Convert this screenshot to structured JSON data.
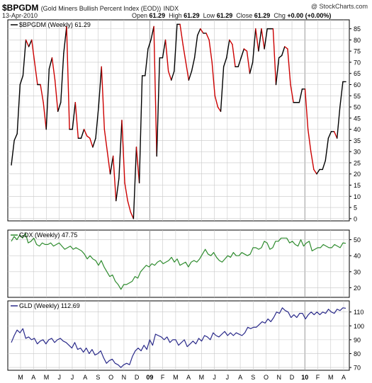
{
  "header": {
    "symbol": "$BPGDM",
    "description": "(Gold Miners Bullish Percent Index (EOD))",
    "exchange": "INDX",
    "date": "13-Apr-2010",
    "brand": "@ StockCharts.com",
    "open_label": "Open",
    "open": "61.29",
    "high_label": "High",
    "high": "61.29",
    "low_label": "Low",
    "low": "61.29",
    "close_label": "Close",
    "close": "61.29",
    "chg_label": "Chg",
    "chg": "+0.00 (+0.00%)"
  },
  "colors": {
    "up": "#000000",
    "down": "#cc0000",
    "gdx": "#2e8b2e",
    "gld": "#2a2a8a",
    "grid": "#c8c8c8",
    "frame": "#000000"
  },
  "x_axis": {
    "ticks": [
      "M",
      "A",
      "M",
      "J",
      "J",
      "A",
      "S",
      "O",
      "N",
      "D",
      "09",
      "F",
      "M",
      "A",
      "M",
      "J",
      "J",
      "A",
      "S",
      "O",
      "N",
      "D",
      "10",
      "F",
      "M",
      "A"
    ]
  },
  "chart_data": [
    {
      "type": "line",
      "panel": "bpgdm",
      "legend": "$BPGDM (Weekly) 61.29",
      "y_ticks": [
        0,
        5,
        10,
        15,
        20,
        25,
        30,
        35,
        40,
        45,
        50,
        55,
        60,
        65,
        70,
        75,
        80,
        85
      ],
      "ylim": [
        -1,
        89
      ],
      "grid": true,
      "colored_by_direction": true,
      "values": [
        24,
        35,
        38,
        60,
        64,
        80,
        77,
        80,
        70,
        60,
        60,
        52,
        40,
        67,
        72,
        62,
        48,
        52,
        74,
        86,
        40,
        40,
        52,
        36,
        36,
        40,
        37,
        36,
        32,
        36,
        50,
        68,
        40,
        30,
        20,
        28,
        8,
        18,
        44,
        16,
        8,
        3,
        0,
        32,
        16,
        64,
        64,
        76,
        80,
        86,
        28,
        72,
        72,
        80,
        66,
        62,
        66,
        87,
        87,
        78,
        70,
        62,
        66,
        72,
        82,
        85,
        83,
        83,
        80,
        70,
        55,
        50,
        48,
        68,
        72,
        80,
        78,
        68,
        68,
        72,
        76,
        75,
        65,
        70,
        85,
        75,
        85,
        76,
        85,
        85,
        85,
        60,
        72,
        73,
        77,
        76,
        60,
        52,
        52,
        52,
        58,
        58,
        40,
        30,
        22,
        20,
        22,
        22,
        26,
        36,
        39,
        39,
        36,
        50,
        61.29,
        61.29
      ]
    },
    {
      "type": "line",
      "panel": "gdx",
      "legend": "GDX (Weekly) 47.75",
      "y_ticks": [
        20,
        30,
        40,
        50
      ],
      "ylim": [
        14,
        56
      ],
      "grid": true,
      "values": [
        49,
        52,
        50,
        53,
        51,
        54,
        48,
        49,
        51,
        47,
        46,
        48,
        47,
        47,
        48,
        46,
        47,
        48,
        46,
        44,
        45,
        46,
        44,
        45,
        44,
        43,
        41,
        38,
        40,
        38,
        37,
        34,
        37,
        33,
        30,
        27,
        28,
        24,
        22,
        19,
        22,
        22,
        23,
        24,
        27,
        26,
        30,
        32,
        34,
        33,
        35,
        34,
        36,
        37,
        35,
        36,
        37,
        39,
        36,
        38,
        34,
        35,
        36,
        33,
        36,
        37,
        36,
        38,
        41,
        44,
        41,
        40,
        42,
        39,
        37,
        36,
        38,
        40,
        39,
        42,
        40,
        40,
        42,
        41,
        40,
        41,
        45,
        45,
        44,
        45,
        49,
        48,
        44,
        45,
        49,
        49,
        51,
        51,
        51,
        48,
        49,
        47,
        46,
        50,
        46,
        48,
        49,
        43,
        44,
        45,
        45,
        47,
        46,
        45,
        45,
        47,
        46,
        45,
        48,
        47.75
      ]
    },
    {
      "type": "line",
      "panel": "gld",
      "legend": "GLD (Weekly) 112.69",
      "y_ticks": [
        70,
        80,
        90,
        100,
        110
      ],
      "ylim": [
        68,
        118
      ],
      "grid": true,
      "values": [
        88,
        93,
        97,
        95,
        98,
        91,
        92,
        90,
        91,
        87,
        89,
        90,
        87,
        90,
        91,
        88,
        90,
        91,
        89,
        88,
        86,
        84,
        88,
        83,
        84,
        81,
        84,
        80,
        83,
        79,
        80,
        82,
        77,
        73,
        75,
        76,
        73,
        72,
        70,
        72,
        73,
        72,
        78,
        82,
        84,
        82,
        86,
        83,
        90,
        86,
        94,
        93,
        92,
        90,
        92,
        88,
        90,
        90,
        86,
        88,
        90,
        85,
        87,
        89,
        87,
        91,
        89,
        93,
        92,
        90,
        95,
        93,
        92,
        94,
        96,
        93,
        95,
        93,
        95,
        94,
        93,
        95,
        99,
        98,
        99,
        99,
        101,
        103,
        102,
        105,
        103,
        106,
        110,
        109,
        113,
        111,
        110,
        106,
        108,
        106,
        109,
        109,
        105,
        108,
        110,
        108,
        110,
        108,
        110,
        109,
        112,
        110,
        109,
        112,
        111,
        113,
        112.69
      ]
    }
  ]
}
